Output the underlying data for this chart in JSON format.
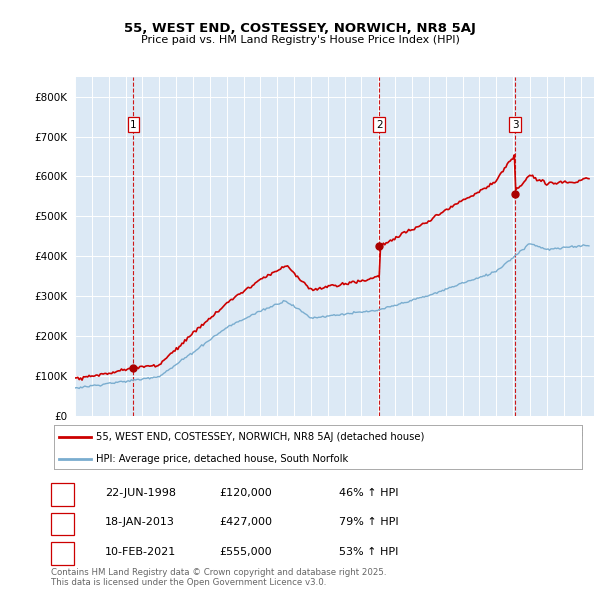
{
  "title": "55, WEST END, COSTESSEY, NORWICH, NR8 5AJ",
  "subtitle": "Price paid vs. HM Land Registry's House Price Index (HPI)",
  "legend_line1": "55, WEST END, COSTESSEY, NORWICH, NR8 5AJ (detached house)",
  "legend_line2": "HPI: Average price, detached house, South Norfolk",
  "footer1": "Contains HM Land Registry data © Crown copyright and database right 2025.",
  "footer2": "This data is licensed under the Open Government Licence v3.0.",
  "sale_color": "#cc0000",
  "hpi_color": "#7aadcf",
  "vline_color": "#cc0000",
  "plot_bg_color": "#dce9f5",
  "ylim": [
    0,
    850000
  ],
  "yticks": [
    0,
    100000,
    200000,
    300000,
    400000,
    500000,
    600000,
    700000,
    800000
  ],
  "ytick_labels": [
    "£0",
    "£100K",
    "£200K",
    "£300K",
    "£400K",
    "£500K",
    "£600K",
    "£700K",
    "£800K"
  ],
  "sales": [
    {
      "date_num": 1998.47,
      "price": 120000,
      "label": "1",
      "date_str": "22-JUN-1998",
      "price_str": "£120,000",
      "pct": "46% ↑ HPI"
    },
    {
      "date_num": 2013.05,
      "price": 427000,
      "label": "2",
      "date_str": "18-JAN-2013",
      "price_str": "£427,000",
      "pct": "79% ↑ HPI"
    },
    {
      "date_num": 2021.11,
      "price": 555000,
      "label": "3",
      "date_str": "10-FEB-2021",
      "price_str": "£555,000",
      "pct": "53% ↑ HPI"
    }
  ],
  "xmin": 1995.0,
  "xmax": 2025.8
}
